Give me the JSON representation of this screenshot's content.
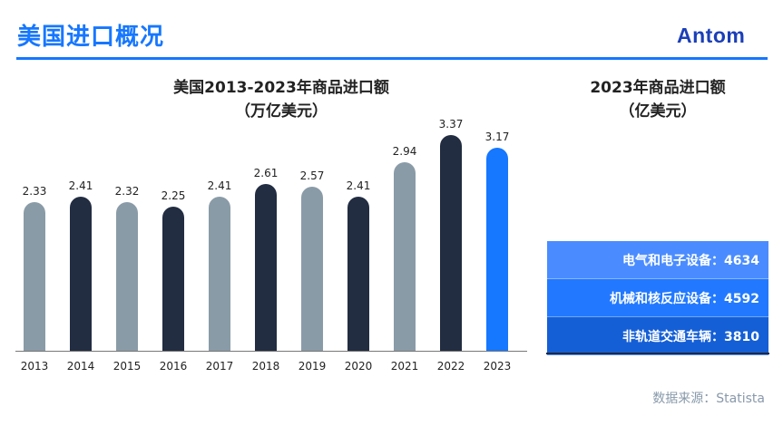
{
  "header": {
    "title": "美国进口概况",
    "logo": "Antom",
    "accent_color": "#1677ff"
  },
  "chart": {
    "title_line1": "美国2013-2023年商品进口额",
    "title_line2": "（万亿美元）"
  },
  "side_panel": {
    "title_line1": "2023年商品进口额",
    "title_line2": "（亿美元）",
    "items": [
      {
        "label": "电气和电子设备：4634",
        "category": "电气和电子设备",
        "value": 4634,
        "color": "#4a8cff"
      },
      {
        "label": "机械和核反应设备：4592",
        "category": "机械和核反应设备",
        "value": 4592,
        "color": "#2279ff"
      },
      {
        "label": "非轨道交通车辆：3810",
        "category": "非轨道交通车辆",
        "value": 3810,
        "color": "#155fd6"
      }
    ]
  },
  "footer": {
    "source": "数据来源：Statista"
  },
  "chart_data": [
    {
      "type": "bar",
      "title": "美国2013-2023年商品进口额（万亿美元）",
      "xlabel": "",
      "ylabel": "万亿美元",
      "categories": [
        "2013",
        "2014",
        "2015",
        "2016",
        "2017",
        "2018",
        "2019",
        "2020",
        "2021",
        "2022",
        "2023"
      ],
      "values": [
        2.33,
        2.41,
        2.32,
        2.25,
        2.41,
        2.61,
        2.57,
        2.41,
        2.94,
        3.37,
        3.17
      ],
      "value_labels": [
        "2.33",
        "2.41",
        "2.32",
        "2.25",
        "2.41",
        "2.61",
        "2.57",
        "2.41",
        "2.94",
        "3.37",
        "3.17"
      ],
      "colors": [
        "#8a9ba8",
        "#222d42",
        "#8a9ba8",
        "#222d42",
        "#8a9ba8",
        "#222d42",
        "#8a9ba8",
        "#222d42",
        "#8a9ba8",
        "#222d42",
        "#1677ff"
      ],
      "ylim": [
        0,
        3.5
      ],
      "grid": false,
      "legend": "none"
    },
    {
      "type": "table",
      "title": "2023年商品进口额（亿美元）",
      "categories": [
        "电气和电子设备",
        "机械和核反应设备",
        "非轨道交通车辆"
      ],
      "values": [
        4634,
        4592,
        3810
      ]
    }
  ]
}
